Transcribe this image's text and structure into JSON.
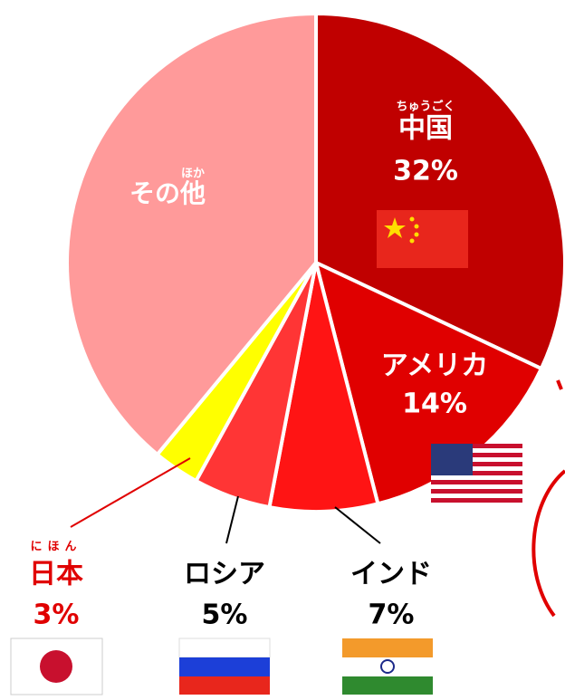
{
  "chart_data": {
    "type": "pie",
    "categories": [
      "中国",
      "アメリカ",
      "インド",
      "ロシア",
      "日本",
      "その他"
    ],
    "furigana": [
      "ちゅうごく",
      null,
      null,
      null,
      "にほん",
      "ほか"
    ],
    "values": [
      32,
      14,
      7,
      5,
      3,
      39
    ],
    "value_labels": [
      "32%",
      "14%",
      "7%",
      "5%",
      "3%",
      null
    ],
    "colors": [
      "#c00000",
      "#e00000",
      "#ff1414",
      "#ff3535",
      "#ffff00",
      "#ff9a9a"
    ]
  }
}
